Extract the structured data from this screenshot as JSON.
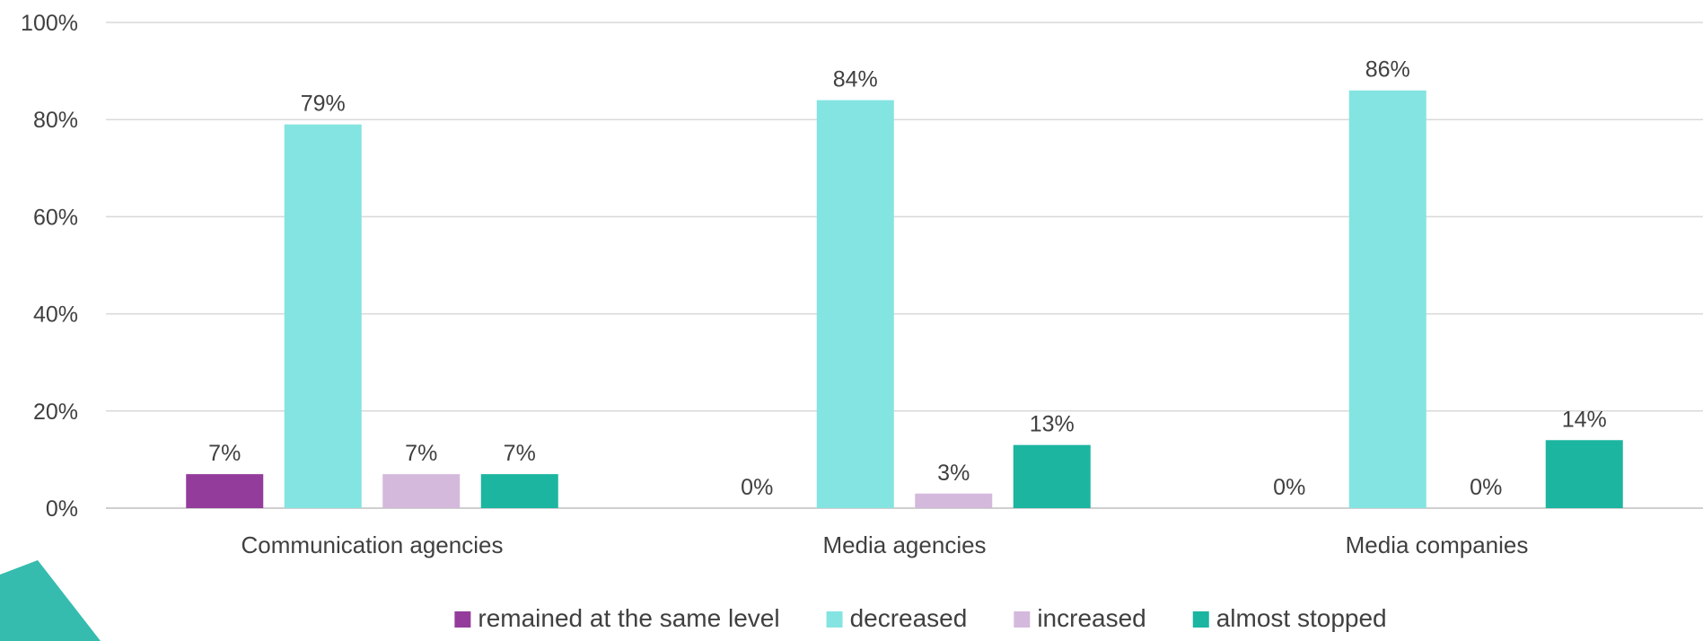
{
  "chart_data": {
    "type": "bar",
    "title": "",
    "xlabel": "",
    "ylabel": "",
    "ylim": [
      0,
      100
    ],
    "y_ticks": [
      "0%",
      "20%",
      "40%",
      "60%",
      "80%",
      "100%"
    ],
    "y_tick_values": [
      0,
      20,
      40,
      60,
      80,
      100
    ],
    "grid": true,
    "legend_position": "bottom",
    "data_labels": true,
    "categories": [
      "Communication agencies",
      "Media agencies",
      "Media companies"
    ],
    "series": [
      {
        "name": "remained at the same level",
        "color": "#943c9c",
        "values": [
          7,
          0,
          0
        ],
        "labels": [
          "7%",
          "0%",
          "0%"
        ]
      },
      {
        "name": "decreased",
        "color": "#84e4e1",
        "values": [
          79,
          84,
          86
        ],
        "labels": [
          "79%",
          "84%",
          "86%"
        ]
      },
      {
        "name": "increased",
        "color": "#d4b9dc",
        "values": [
          7,
          3,
          0
        ],
        "labels": [
          "7%",
          "3%",
          "0%"
        ]
      },
      {
        "name": "almost stopped",
        "color": "#1cb5a0",
        "values": [
          7,
          13,
          14
        ],
        "labels": [
          "7%",
          "13%",
          "14%"
        ]
      }
    ]
  },
  "decoration": {
    "corner_shape_color": "#35bcae"
  }
}
